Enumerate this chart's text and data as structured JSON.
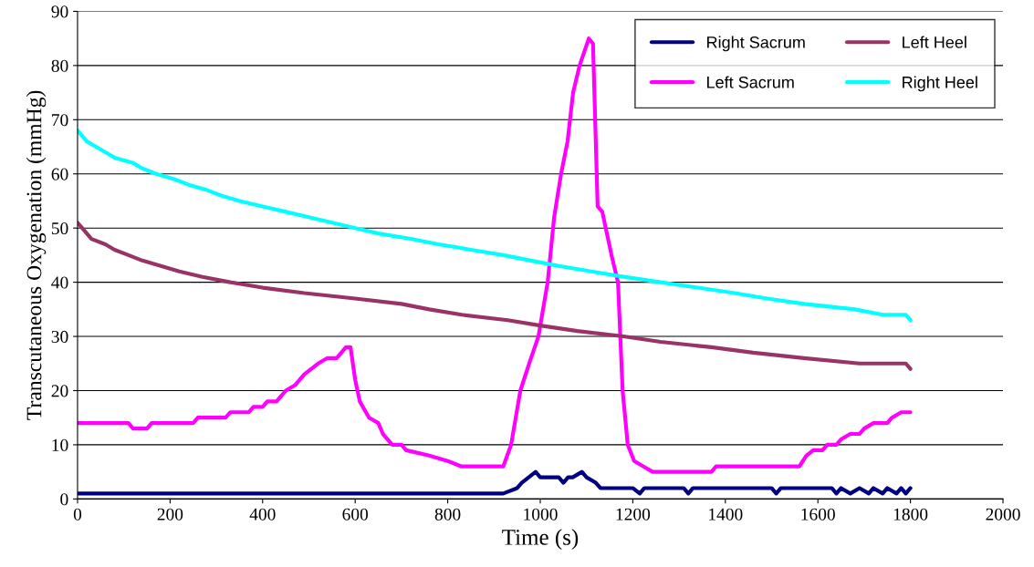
{
  "chart_data": {
    "type": "line",
    "xlabel": "Time (s)",
    "ylabel": "Transcutaneous Oxygenation (mmHg)",
    "xlim": [
      0,
      2000
    ],
    "ylim": [
      0,
      90
    ],
    "xticks": [
      0,
      200,
      400,
      600,
      800,
      1000,
      1200,
      1400,
      1600,
      1800,
      2000
    ],
    "yticks": [
      0,
      10,
      20,
      30,
      40,
      50,
      60,
      70,
      80,
      90
    ],
    "grid": "y",
    "legend": "top right",
    "marker": "none",
    "line_style": "solid",
    "series": [
      {
        "name": "Right Sacrum",
        "color": "#000080",
        "x": [
          0,
          920,
          950,
          960,
          975,
          990,
          1000,
          1040,
          1050,
          1060,
          1070,
          1090,
          1100,
          1120,
          1130,
          1200,
          1215,
          1225,
          1310,
          1320,
          1330,
          1500,
          1510,
          1520,
          1630,
          1640,
          1650,
          1670,
          1690,
          1710,
          1720,
          1740,
          1750,
          1770,
          1780,
          1790,
          1800
        ],
        "values": [
          1,
          1,
          2,
          3,
          4,
          5,
          4,
          4,
          3,
          4,
          4,
          5,
          4,
          3,
          2,
          2,
          1,
          2,
          2,
          1,
          2,
          2,
          1,
          2,
          2,
          1,
          2,
          1,
          2,
          1,
          2,
          1,
          2,
          1,
          2,
          1,
          2
        ]
      },
      {
        "name": "Left Sacrum",
        "color": "#ff00ff",
        "x": [
          0,
          110,
          120,
          150,
          160,
          250,
          260,
          320,
          330,
          370,
          380,
          400,
          410,
          430,
          450,
          470,
          490,
          520,
          540,
          560,
          580,
          590,
          600,
          610,
          630,
          650,
          660,
          680,
          700,
          710,
          760,
          800,
          830,
          920,
          937,
          957,
          976,
          996,
          1016,
          1030,
          1045,
          1059,
          1071,
          1085,
          1105,
          1114,
          1124,
          1134,
          1154,
          1168,
          1178,
          1189,
          1203,
          1223,
          1243,
          1370,
          1380,
          1560,
          1575,
          1590,
          1610,
          1620,
          1640,
          1650,
          1670,
          1690,
          1700,
          1720,
          1750,
          1760,
          1780,
          1800
        ],
        "values": [
          14,
          14,
          13,
          13,
          14,
          14,
          15,
          15,
          16,
          16,
          17,
          17,
          18,
          18,
          20,
          21,
          23,
          25,
          26,
          26,
          28,
          28,
          22,
          18,
          15,
          14,
          12,
          10,
          10,
          9,
          8,
          7,
          6,
          6,
          10,
          20,
          25,
          30,
          40,
          52,
          60,
          66,
          75,
          80,
          85,
          84,
          54,
          53,
          45,
          40,
          20,
          10,
          7,
          6,
          5,
          5,
          6,
          6,
          8,
          9,
          9,
          10,
          10,
          11,
          12,
          12,
          13,
          14,
          14,
          15,
          16,
          16
        ]
      },
      {
        "name": "Left Heel",
        "color": "#993366",
        "x": [
          0,
          10,
          20,
          30,
          60,
          80,
          110,
          140,
          180,
          220,
          270,
          330,
          400,
          490,
          600,
          700,
          760,
          830,
          930,
          1000,
          1080,
          1180,
          1260,
          1370,
          1460,
          1570,
          1690,
          1790,
          1800
        ],
        "values": [
          51,
          50,
          49,
          48,
          47,
          46,
          45,
          44,
          43,
          42,
          41,
          40,
          39,
          38,
          37,
          36,
          35,
          34,
          33,
          32,
          31,
          30,
          29,
          28,
          27,
          26,
          25,
          25,
          24
        ]
      },
      {
        "name": "Right Heel",
        "color": "#00ffff",
        "x": [
          0,
          10,
          20,
          40,
          60,
          80,
          120,
          140,
          170,
          210,
          240,
          280,
          310,
          350,
          400,
          450,
          500,
          550,
          600,
          650,
          720,
          780,
          850,
          920,
          980,
          1040,
          1110,
          1180,
          1260,
          1340,
          1420,
          1490,
          1570,
          1680,
          1740,
          1790,
          1800
        ],
        "values": [
          68,
          67,
          66,
          65,
          64,
          63,
          62,
          61,
          60,
          59,
          58,
          57,
          56,
          55,
          54,
          53,
          52,
          51,
          50,
          49,
          48,
          47,
          46,
          45,
          44,
          43,
          42,
          41,
          40,
          39,
          38,
          37,
          36,
          35,
          34,
          34,
          33
        ]
      }
    ]
  }
}
